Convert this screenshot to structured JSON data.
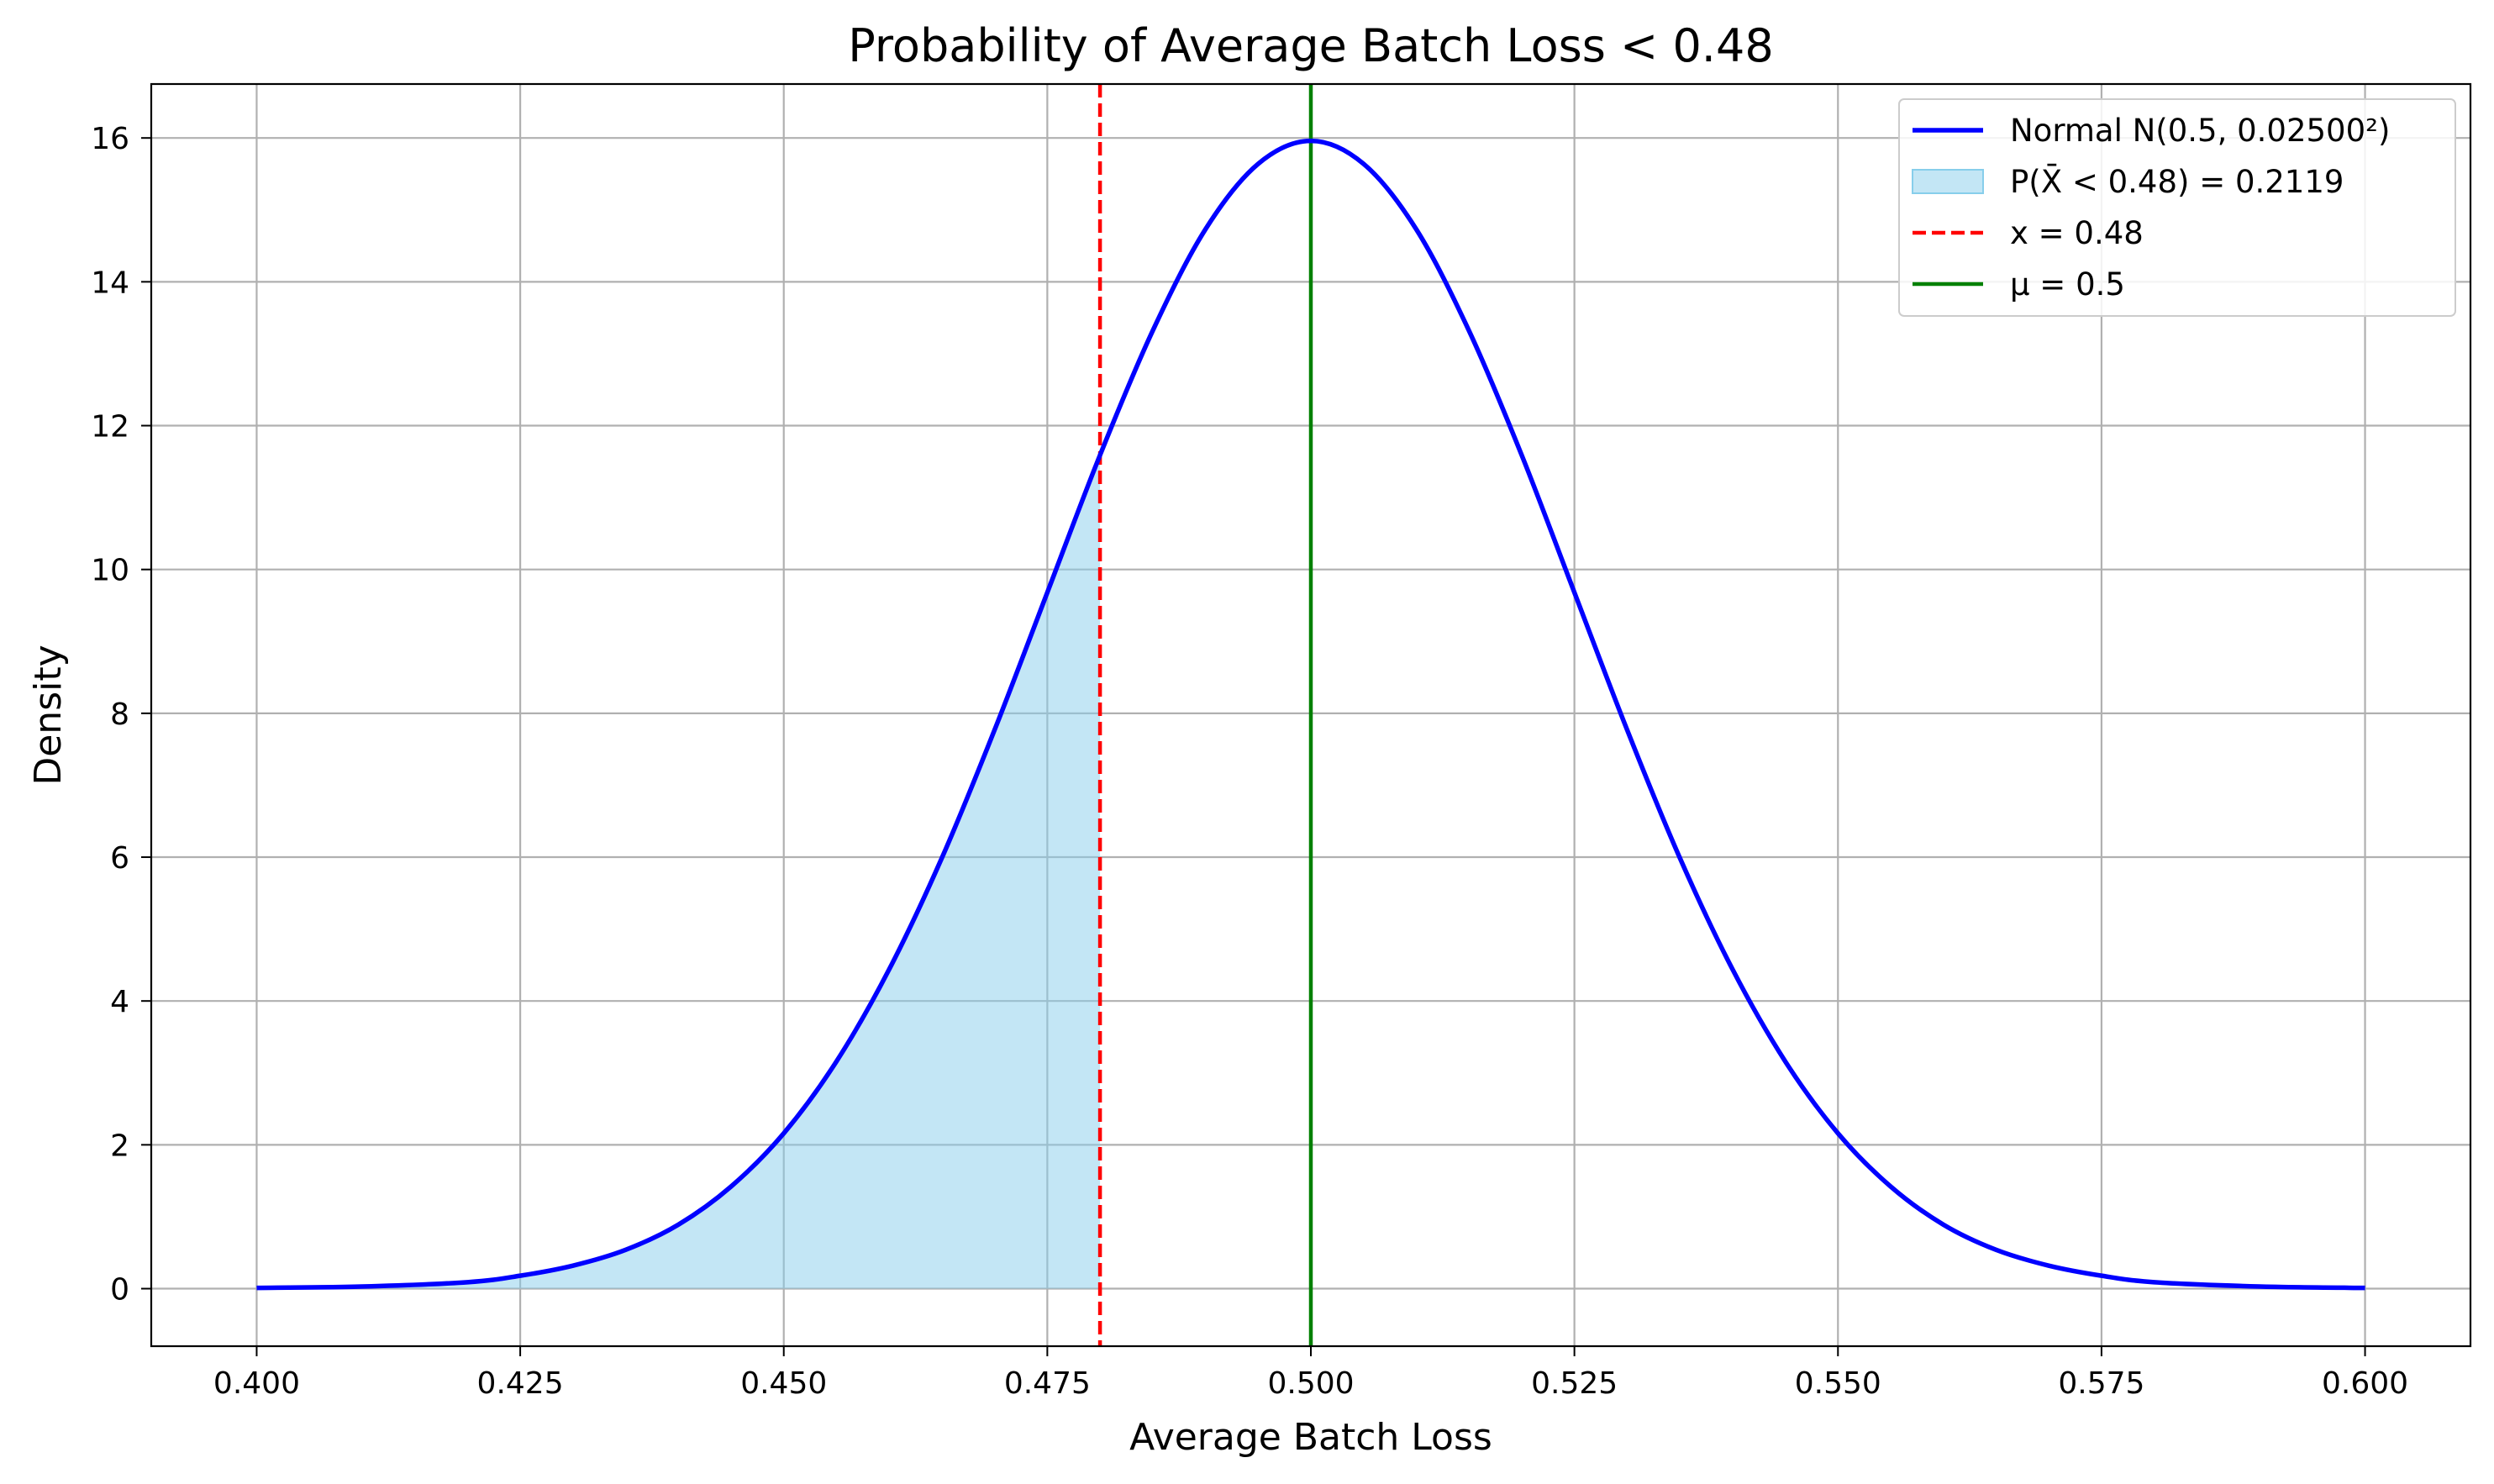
{
  "chart_data": {
    "type": "line",
    "title": "Probability of Average Batch Loss < 0.48",
    "xlabel": "Average Batch Loss",
    "ylabel": "Density",
    "xlim": [
      0.39,
      0.61
    ],
    "ylim": [
      -0.8,
      16.75
    ],
    "grid": true,
    "legend_position": "top-right",
    "x_ticks": [
      {
        "value": 0.4,
        "label": "0.400"
      },
      {
        "value": 0.425,
        "label": "0.425"
      },
      {
        "value": 0.45,
        "label": "0.450"
      },
      {
        "value": 0.475,
        "label": "0.475"
      },
      {
        "value": 0.5,
        "label": "0.500"
      },
      {
        "value": 0.525,
        "label": "0.525"
      },
      {
        "value": 0.55,
        "label": "0.550"
      },
      {
        "value": 0.575,
        "label": "0.575"
      },
      {
        "value": 0.6,
        "label": "0.600"
      }
    ],
    "y_ticks": [
      {
        "value": 0,
        "label": "0"
      },
      {
        "value": 2,
        "label": "2"
      },
      {
        "value": 4,
        "label": "4"
      },
      {
        "value": 6,
        "label": "6"
      },
      {
        "value": 8,
        "label": "8"
      },
      {
        "value": 10,
        "label": "10"
      },
      {
        "value": 12,
        "label": "12"
      },
      {
        "value": 14,
        "label": "14"
      },
      {
        "value": 16,
        "label": "16"
      }
    ],
    "series": [
      {
        "name": "Normal N(0.5, 0.02500²)",
        "kind": "line",
        "color": "#0000ff",
        "x": [
          0.4,
          0.41,
          0.42,
          0.425,
          0.43,
          0.435,
          0.44,
          0.445,
          0.45,
          0.455,
          0.46,
          0.465,
          0.47,
          0.475,
          0.48,
          0.485,
          0.49,
          0.495,
          0.5,
          0.505,
          0.51,
          0.515,
          0.52,
          0.525,
          0.53,
          0.535,
          0.54,
          0.545,
          0.55,
          0.555,
          0.56,
          0.565,
          0.57,
          0.575,
          0.58,
          0.59,
          0.6
        ],
        "y": [
          0.01,
          0.03,
          0.09,
          0.18,
          0.32,
          0.54,
          0.89,
          1.42,
          2.16,
          3.16,
          4.44,
          5.99,
          7.77,
          9.68,
          11.59,
          13.32,
          14.73,
          15.64,
          15.96,
          15.64,
          14.73,
          13.32,
          11.59,
          9.68,
          7.77,
          5.99,
          4.44,
          3.16,
          2.16,
          1.42,
          0.89,
          0.54,
          0.32,
          0.18,
          0.09,
          0.03,
          0.01
        ]
      },
      {
        "name": "P(X̄ < 0.48) = 0.2119",
        "kind": "area",
        "color": "#87ceeb",
        "x": [
          0.4,
          0.41,
          0.42,
          0.425,
          0.43,
          0.435,
          0.44,
          0.445,
          0.45,
          0.455,
          0.46,
          0.465,
          0.47,
          0.475,
          0.48
        ],
        "y": [
          0.01,
          0.03,
          0.09,
          0.18,
          0.32,
          0.54,
          0.89,
          1.42,
          2.16,
          3.16,
          4.44,
          5.99,
          7.77,
          9.68,
          11.59
        ]
      },
      {
        "name": "x = 0.48",
        "kind": "vline",
        "color": "#ff0000",
        "linestyle": "dashed",
        "x": 0.48
      },
      {
        "name": "μ = 0.5",
        "kind": "vline",
        "color": "#008000",
        "linestyle": "solid",
        "x": 0.5
      }
    ]
  }
}
